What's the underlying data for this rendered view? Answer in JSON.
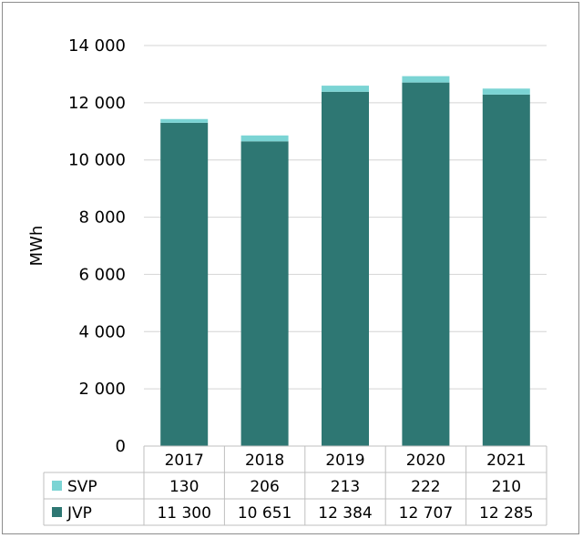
{
  "chart_data": {
    "type": "bar",
    "stacked": true,
    "categories": [
      "2017",
      "2018",
      "2019",
      "2020",
      "2021"
    ],
    "series": [
      {
        "name": "JVP",
        "values": [
          11300,
          10651,
          12384,
          12707,
          12285
        ],
        "labels": [
          "11 300",
          "10 651",
          "12 384",
          "12 707",
          "12 285"
        ],
        "color": "#2e7773"
      },
      {
        "name": "SVP",
        "values": [
          130,
          206,
          213,
          222,
          210
        ],
        "labels": [
          "130",
          "206",
          "213",
          "222",
          "210"
        ],
        "color": "#7bd4d4"
      }
    ],
    "ylabel": "MWh",
    "ylim": [
      0,
      14000
    ],
    "yticks": [
      0,
      2000,
      4000,
      6000,
      8000,
      10000,
      12000,
      14000
    ],
    "ytick_labels": [
      "0",
      "2 000",
      "4 000",
      "6 000",
      "8 000",
      "10 000",
      "12 000",
      "14 000"
    ],
    "grid": true,
    "legend": "data-table"
  }
}
